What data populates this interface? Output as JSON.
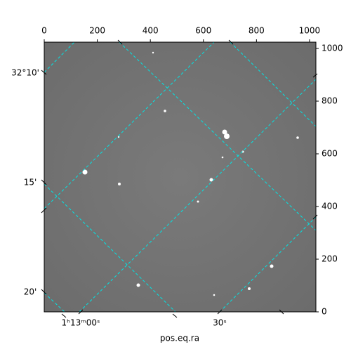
{
  "chart_data": {
    "type": "image",
    "xlabel": "pos.eq.ra",
    "xlim": [
      0,
      1024
    ],
    "xticks": [
      0,
      200,
      400,
      600,
      800,
      1000
    ],
    "ylim": [
      0,
      1024
    ],
    "yticks": [
      0,
      200,
      400,
      600,
      800,
      1000
    ],
    "dec_labels": [
      "32°10'",
      "15'",
      "20'"
    ],
    "ra_labels": [
      "1ʰ13ᵐ00ˢ",
      "30ˢ"
    ]
  }
}
